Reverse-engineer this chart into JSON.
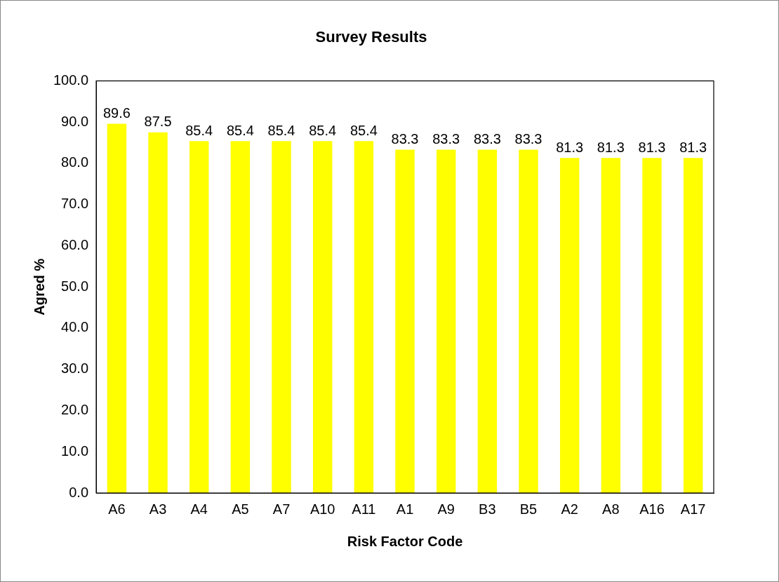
{
  "chart_data": {
    "type": "bar",
    "title": "Survey Results",
    "xlabel": "Risk Factor Code",
    "ylabel": "Agred %",
    "categories": [
      "A6",
      "A3",
      "A4",
      "A5",
      "A7",
      "A10",
      "A11",
      "A1",
      "A9",
      "B3",
      "B5",
      "A2",
      "A8",
      "A16",
      "A17"
    ],
    "values": [
      89.6,
      87.5,
      85.4,
      85.4,
      85.4,
      85.4,
      85.4,
      83.3,
      83.3,
      83.3,
      83.3,
      81.3,
      81.3,
      81.3,
      81.3
    ],
    "color": "#ffff00",
    "data_labels": true,
    "grid": false,
    "legend": false,
    "ylim": [
      0,
      100
    ],
    "yticks": [
      {
        "value": 0,
        "label": "0.0"
      },
      {
        "value": 10,
        "label": "10.0"
      },
      {
        "value": 20,
        "label": "20.0"
      },
      {
        "value": 30,
        "label": "30.0"
      },
      {
        "value": 40,
        "label": "40.0"
      },
      {
        "value": 50,
        "label": "50.0"
      },
      {
        "value": 60,
        "label": "60.0"
      },
      {
        "value": 70,
        "label": "70.0"
      },
      {
        "value": 80,
        "label": "80.0"
      },
      {
        "value": 90,
        "label": "90.0"
      },
      {
        "value": 100,
        "label": "100.0"
      }
    ]
  }
}
